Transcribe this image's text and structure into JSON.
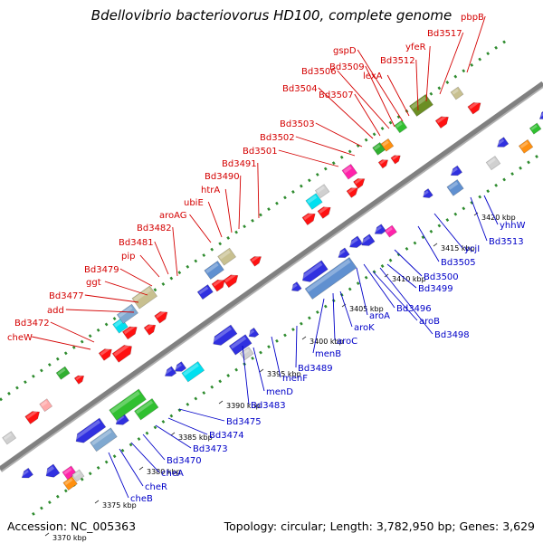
{
  "title": "Bdellovibrio bacteriovorus HD100, complete genome",
  "footer": {
    "accession": "Accession: NC_005363",
    "topology": "Topology: circular; Length: 3,782,950 bp; Genes: 3,629"
  },
  "ticks": [
    "3370 kbp",
    "3375 kbp",
    "3380 kbp",
    "3385 kbp",
    "3390 kbp",
    "3395 kbp",
    "3400 kbp",
    "3405 kbp",
    "3410 kbp",
    "3415 kbp",
    "3420 kbp"
  ],
  "labels_forward": [
    "cheW",
    "Bd3472",
    "add",
    "Bd3477",
    "ggt",
    "Bd3479",
    "pip",
    "Bd3481",
    "Bd3482",
    "aroAG",
    "ubiE",
    "htrA",
    "Bd3490",
    "Bd3491",
    "Bd3501",
    "Bd3502",
    "Bd3503",
    "Bd3504",
    "Bd3507",
    "Bd3506",
    "Bd3509",
    "gspD",
    "lexA",
    "Bd3512",
    "yfeR",
    "Bd3517",
    "pbpB"
  ],
  "labels_reverse": [
    "cheB",
    "cheR",
    "cheA",
    "Bd3470",
    "Bd3473",
    "Bd3474",
    "Bd3475",
    "Bd3483",
    "menD",
    "menF",
    "Bd3489",
    "menB",
    "aroC",
    "aroK",
    "aroA",
    "Bd3496",
    "aroB",
    "Bd3498",
    "Bd3499",
    "Bd3500",
    "Bd3505",
    "ycjI",
    "Bd3513",
    "yhhW"
  ],
  "colors": {
    "label_forward": "#d40000",
    "label_reverse": "#0000c8",
    "backbone": "#808080",
    "dots": "#2e8b2e"
  }
}
